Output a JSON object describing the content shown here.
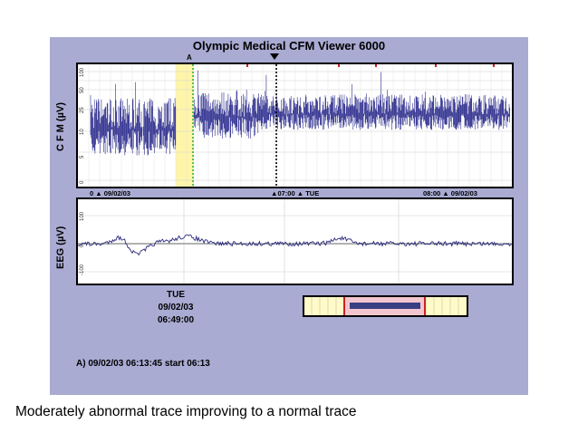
{
  "app": {
    "title": "Olympic Medical CFM Viewer 6000"
  },
  "cfm": {
    "axis_label": "C F M (µV)",
    "ticks": [
      "100",
      "50",
      "25",
      "10",
      "5",
      "0"
    ],
    "marker_label": "A",
    "time_labels": {
      "start": "0",
      "start_date": "09/02/03",
      "mid_time": "07:00",
      "mid_day": "TUE",
      "end_time": "08:00",
      "end_date": "09/02/03"
    }
  },
  "eeg": {
    "axis_label": "EEG (µV)",
    "ticks": [
      "100",
      "0",
      "-100"
    ]
  },
  "cursor": {
    "day": "TUE",
    "date": "09/02/03",
    "time": "06:49:00"
  },
  "event": {
    "text": "A)  09/02/03 06:13:45   start 06:13"
  },
  "caption": "Moderately abnormal trace improving to a normal trace",
  "colors": {
    "panel": "#a9abd3",
    "trace": "#2a2a8c",
    "highlight": "#fff5a8",
    "nav_fill": "#fffbc8",
    "nav_window": "#f3c6cf",
    "nav_bar": "#3a3f84",
    "nav_border": "#cc2222"
  }
}
